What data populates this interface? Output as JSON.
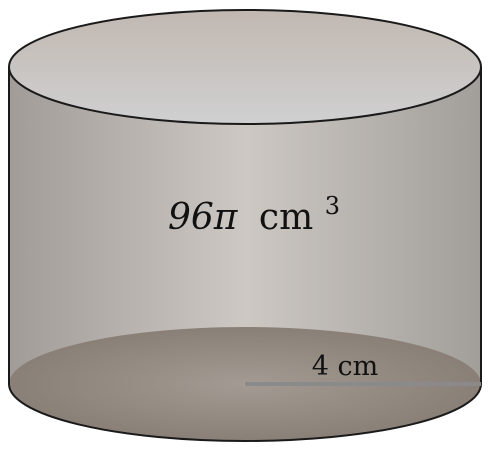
{
  "figure": {
    "volume_value": "96π",
    "volume_unit": "cm",
    "volume_exponent": "3",
    "radius_label": "4 cm"
  },
  "colors": {
    "side_dark": "#a29d98",
    "side_light": "#cdc8c3",
    "top_face": "#c9c6c3",
    "bottom_face": "#8e857d",
    "outline": "#1a1a1a",
    "radius_line": "#8a8a8a"
  }
}
